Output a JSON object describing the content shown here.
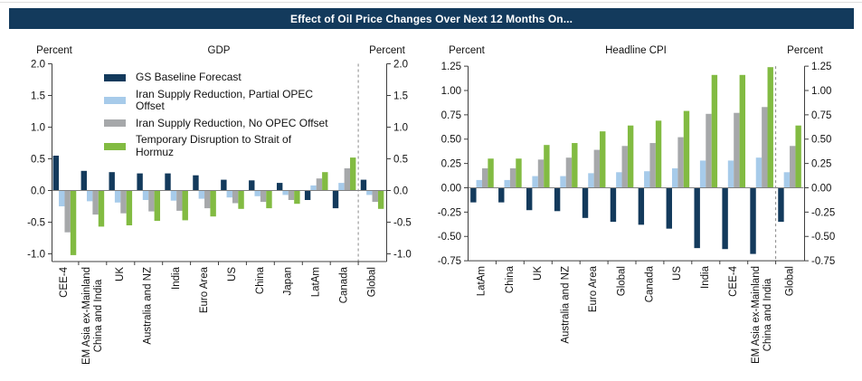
{
  "title": "Effect of Oil Price Changes Over Next 12 Months On...",
  "colors": {
    "title_bar_bg": "#133A5C",
    "title_text": "#FFFFFF",
    "baseline_navy": "#133A5C",
    "partial_offset_lightblue": "#A7CBEA",
    "no_offset_gray": "#A6A8AA",
    "hormuz_green": "#82BB42",
    "axis": "#3F3F3F",
    "zero_line": "#808080",
    "separator": "#888888",
    "text": "#111111"
  },
  "legend": {
    "items": [
      {
        "label": "GS Baseline Forecast",
        "color_key": "baseline_navy"
      },
      {
        "label": "Iran Supply Reduction, Partial OPEC\nOffset",
        "color_key": "partial_offset_lightblue"
      },
      {
        "label": "Iran Supply Reduction, No OPEC Offset",
        "color_key": "no_offset_gray"
      },
      {
        "label": "Temporary Disruption to Strait of\nHormuz",
        "color_key": "hormuz_green"
      }
    ]
  },
  "chart_data": [
    {
      "type": "bar",
      "title": "GDP",
      "ylabel_left": "Percent",
      "ylabel_right": "Percent",
      "unit": "Percent",
      "ylim": [
        -1.1,
        2.0
      ],
      "yticks": [
        2.0,
        1.5,
        1.0,
        0.5,
        0.0,
        -0.5,
        -1.0
      ],
      "ytick_labels": [
        "2.0",
        "1.5",
        "1.0",
        "0.5",
        "0.0",
        "-0.5",
        "-1.0"
      ],
      "grid": false,
      "legend_position": "upper center inside",
      "separator_before_category": "Global",
      "categories": [
        "CEE-4",
        "EM Asia ex-Mainland\nChina and India",
        "UK",
        "Australia and NZ",
        "India",
        "Euro Area",
        "US",
        "China",
        "Japan",
        "LatAm",
        "Canada",
        "Global"
      ],
      "series": [
        {
          "name": "GS Baseline Forecast",
          "color_key": "baseline_navy",
          "values": [
            0.55,
            0.31,
            0.29,
            0.27,
            0.27,
            0.24,
            0.17,
            0.16,
            0.12,
            -0.15,
            -0.28,
            0.17
          ]
        },
        {
          "name": "Iran Supply Reduction, Partial OPEC Offset",
          "color_key": "partial_offset_lightblue",
          "values": [
            -0.25,
            -0.17,
            -0.19,
            -0.15,
            -0.16,
            -0.13,
            -0.11,
            -0.09,
            -0.07,
            0.08,
            0.12,
            -0.07
          ]
        },
        {
          "name": "Iran Supply Reduction, No OPEC Offset",
          "color_key": "no_offset_gray",
          "values": [
            -0.66,
            -0.38,
            -0.36,
            -0.33,
            -0.32,
            -0.28,
            -0.2,
            -0.18,
            -0.15,
            0.19,
            0.35,
            -0.18
          ]
        },
        {
          "name": "Temporary Disruption to Strait of Hormuz",
          "color_key": "hormuz_green",
          "values": [
            -1.02,
            -0.57,
            -0.55,
            -0.48,
            -0.47,
            -0.41,
            -0.29,
            -0.28,
            -0.21,
            0.29,
            0.52,
            -0.29
          ]
        }
      ]
    },
    {
      "type": "bar",
      "title": "Headline CPI",
      "ylabel_left": "Percent",
      "ylabel_right": "Percent",
      "unit": "Percent",
      "ylim": [
        -0.75,
        1.25
      ],
      "yticks": [
        1.25,
        1.0,
        0.75,
        0.5,
        0.25,
        0.0,
        -0.25,
        -0.5,
        -0.75
      ],
      "ytick_labels": [
        "1.25",
        "1.00",
        "0.75",
        "0.50",
        "0.25",
        "0.00",
        "-0.25",
        "-0.50",
        "-0.75"
      ],
      "grid": false,
      "legend_position": "none",
      "separator_before_category": "Global",
      "categories": [
        "LatAm",
        "China",
        "UK",
        "Australia and NZ",
        "Euro Area",
        "Global",
        "Canada",
        "US",
        "India",
        "CEE-4",
        "EM Asia ex-Mainland\nChina and India",
        "Global"
      ],
      "series": [
        {
          "name": "GS Baseline Forecast",
          "color_key": "baseline_navy",
          "values": [
            -0.15,
            -0.15,
            -0.23,
            -0.24,
            -0.31,
            -0.35,
            -0.38,
            -0.42,
            -0.62,
            -0.63,
            -0.68,
            -0.35
          ]
        },
        {
          "name": "Iran Supply Reduction, Partial OPEC Offset",
          "color_key": "partial_offset_lightblue",
          "values": [
            0.08,
            0.08,
            0.12,
            0.12,
            0.15,
            0.16,
            0.17,
            0.2,
            0.28,
            0.28,
            0.31,
            0.16
          ]
        },
        {
          "name": "Iran Supply Reduction, No OPEC Offset",
          "color_key": "no_offset_gray",
          "values": [
            0.2,
            0.2,
            0.29,
            0.31,
            0.39,
            0.43,
            0.46,
            0.52,
            0.76,
            0.77,
            0.83,
            0.43
          ]
        },
        {
          "name": "Temporary Disruption to Strait of Hormuz",
          "color_key": "hormuz_green",
          "values": [
            0.3,
            0.3,
            0.44,
            0.46,
            0.58,
            0.64,
            0.69,
            0.79,
            1.16,
            1.16,
            1.24,
            0.64
          ]
        }
      ]
    }
  ]
}
